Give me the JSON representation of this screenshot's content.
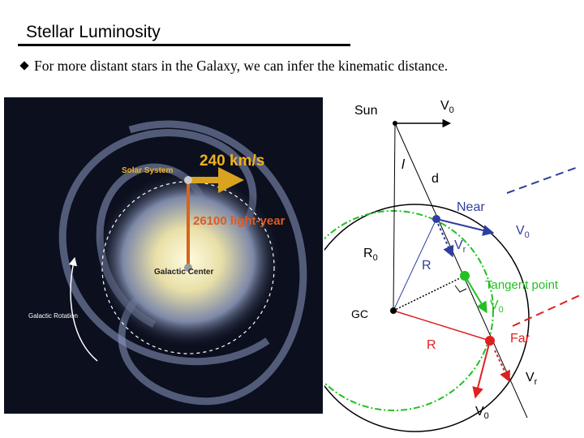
{
  "header": {
    "title": "Stellar Luminosity"
  },
  "bullet": "For more distant stars in the Galaxy, we can infer the kinematic distance.",
  "galaxy": {
    "speed": "240 km/s",
    "solar_system": "Solar System",
    "distance": "26100 light-year",
    "center": "Galactic Center",
    "rotation": "Galactic Rotation"
  },
  "diagram": {
    "labels": [
      {
        "text": "Sun"
      },
      {
        "text": "V",
        "sub": "0"
      },
      {
        "text": "l"
      },
      {
        "text": "d"
      },
      {
        "text": "Near"
      },
      {
        "text": "V",
        "sub": "0"
      },
      {
        "text": "V",
        "sub": "r"
      },
      {
        "text": "R",
        "sub": "0"
      },
      {
        "text": "R"
      },
      {
        "text": "Tangent point"
      },
      {
        "text": "V",
        "sub": "0"
      },
      {
        "text": "GC"
      },
      {
        "text": "R"
      },
      {
        "text": "Far"
      },
      {
        "text": "V",
        "sub": "r"
      },
      {
        "text": "V",
        "sub": "0"
      }
    ]
  }
}
